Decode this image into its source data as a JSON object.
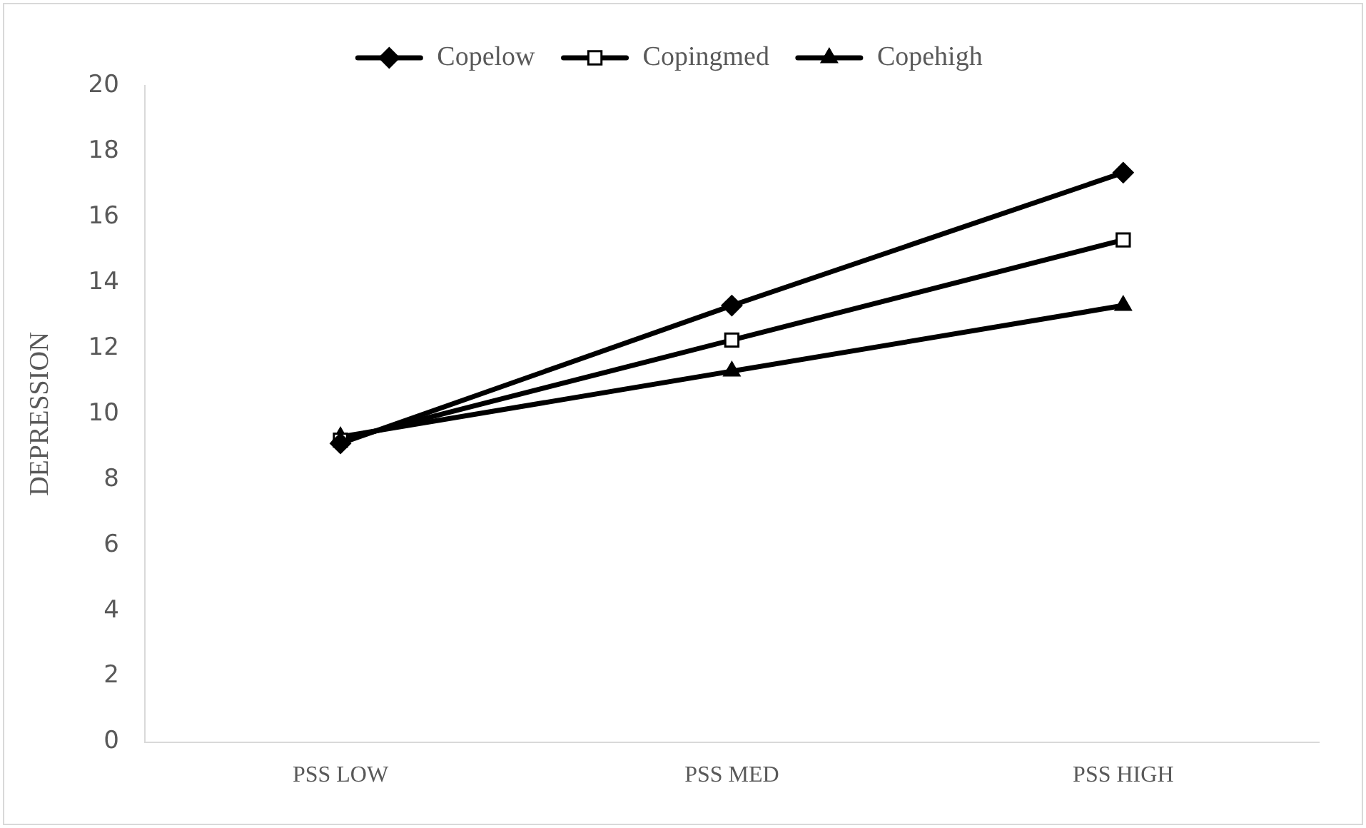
{
  "chart_data": {
    "type": "line",
    "ylabel": "DEPRESSION",
    "categories": [
      "PSS LOW",
      "PSS MED",
      "PSS HIGH"
    ],
    "series": [
      {
        "name": "Copelow",
        "color": "#000000",
        "marker": "diamond",
        "values": [
          9.1,
          13.3,
          17.35
        ]
      },
      {
        "name": "Copingmed",
        "color": "#000000",
        "marker": "square",
        "values": [
          9.2,
          12.25,
          15.3
        ]
      },
      {
        "name": "Copehigh",
        "color": "#000000",
        "marker": "triangle",
        "values": [
          9.3,
          11.3,
          13.3
        ]
      }
    ],
    "ylim": [
      0,
      20
    ],
    "yticks": [
      0,
      2,
      4,
      6,
      8,
      10,
      12,
      14,
      16,
      18,
      20
    ],
    "grid": false,
    "legend": "top",
    "line_style": "solid"
  }
}
